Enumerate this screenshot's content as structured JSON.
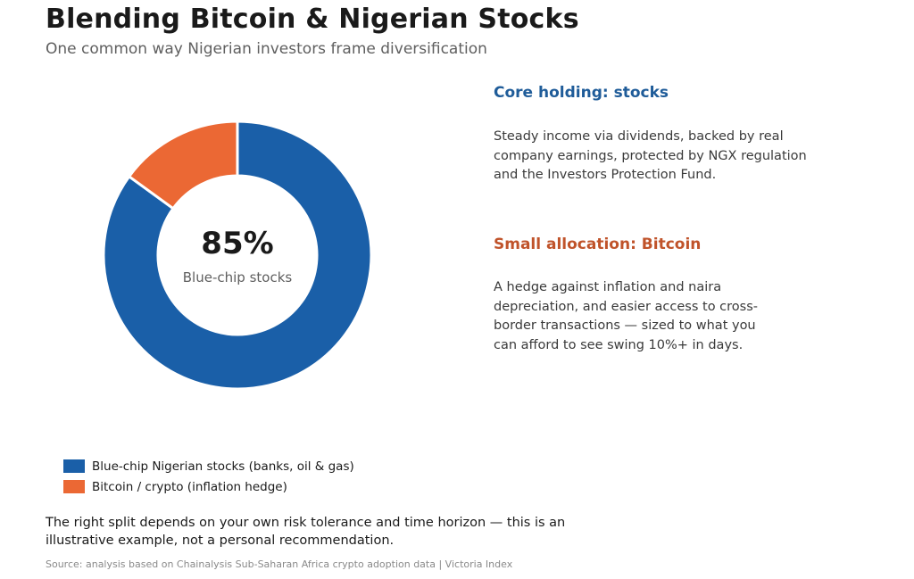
{
  "header": {
    "title": "Blending Bitcoin & Nigerian Stocks",
    "subtitle": "One common way Nigerian investors frame diversification"
  },
  "chart_data": {
    "type": "pie",
    "subtype": "donut",
    "categories": [
      "Blue-chip Nigerian stocks (banks, oil & gas)",
      "Bitcoin / crypto (inflation hedge)"
    ],
    "values": [
      85,
      15
    ],
    "colors": [
      "#1a5fa8",
      "#eb6834"
    ],
    "center_value": "85%",
    "center_label": "Blue-chip stocks",
    "legend_position": "bottom-left"
  },
  "panels": {
    "core": {
      "heading": "Core holding: stocks",
      "heading_color": "#1f5c99",
      "text": "Steady income via dividends, backed by real company earnings, protected by NGX regulation and the Investors Protection Fund."
    },
    "bitcoin": {
      "heading": "Small allocation: Bitcoin",
      "heading_color": "#c0532a",
      "text": "A hedge against inflation and naira depreciation, and easier access to cross-border transactions — sized to what you can afford to see swing 10%+ in days."
    }
  },
  "footer": {
    "note": "The right split depends on your own risk tolerance and time horizon — this is an illustrative example, not a personal recommendation.",
    "source": "Source: analysis based on Chainalysis Sub-Saharan Africa crypto adoption data  |  Victoria Index"
  }
}
